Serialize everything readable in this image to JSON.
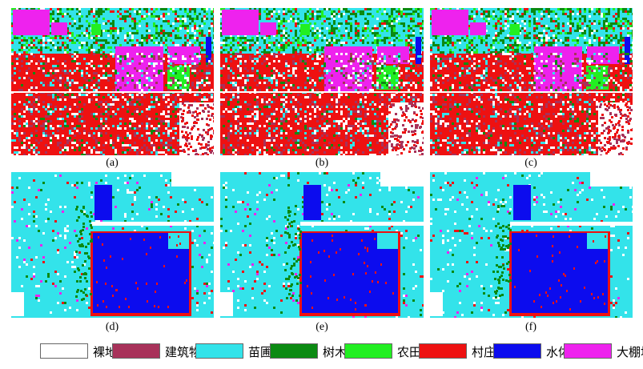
{
  "panels": [
    {
      "id": "a",
      "label": "(a)"
    },
    {
      "id": "b",
      "label": "(b)"
    },
    {
      "id": "c",
      "label": "(c)"
    },
    {
      "id": "d",
      "label": "(d)"
    },
    {
      "id": "e",
      "label": "(e)"
    },
    {
      "id": "f",
      "label": "(f)"
    }
  ],
  "legend": [
    {
      "label": "裸地",
      "color": "#ffffff"
    },
    {
      "label": "建筑物",
      "color": "#a8325a"
    },
    {
      "label": "苗圃",
      "color": "#33e3ea"
    },
    {
      "label": "树木",
      "color": "#0b8a12"
    },
    {
      "label": "农田",
      "color": "#22ef22"
    },
    {
      "label": "村庄",
      "color": "#ee1111"
    },
    {
      "label": "水体",
      "color": "#0c0cee"
    },
    {
      "label": "大棚地",
      "color": "#ee22ee"
    }
  ]
}
